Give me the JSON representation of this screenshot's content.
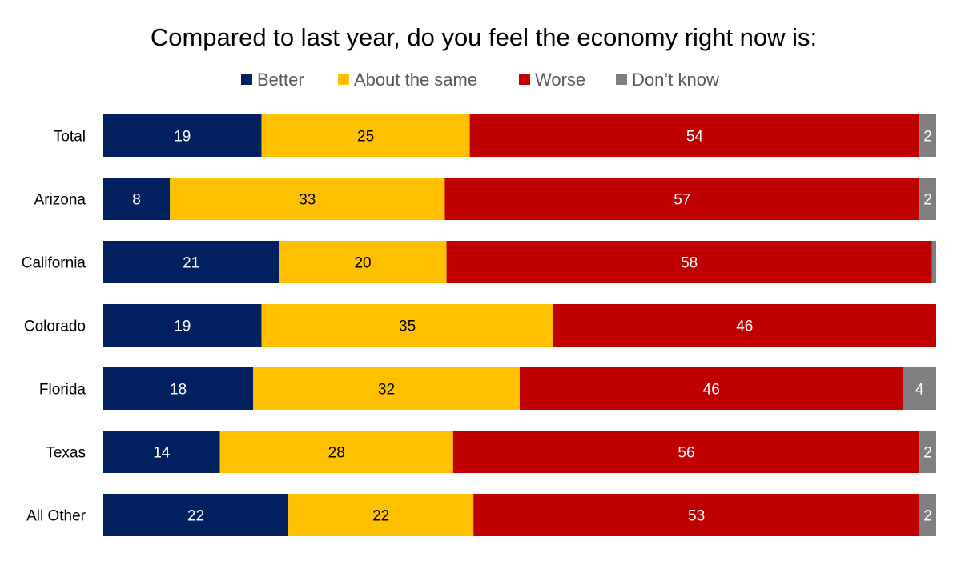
{
  "chart_data": {
    "type": "bar",
    "orientation": "horizontal",
    "stacked": true,
    "title": "Compared to last year, do you feel the economy right now is:",
    "xlabel": "",
    "ylabel": "",
    "xlim": [
      0,
      100
    ],
    "grid": false,
    "legend_position": "top",
    "categories": [
      "Total",
      "Arizona",
      "California",
      "Colorado",
      "Florida",
      "Texas",
      "All Other"
    ],
    "series": [
      {
        "name": "Better",
        "color": "#002060",
        "label_color": "#ffffff",
        "values": [
          19,
          8,
          21,
          19,
          18,
          14,
          22
        ],
        "labels": [
          "19",
          "8",
          "21",
          "19",
          "18",
          "14",
          "22"
        ]
      },
      {
        "name": "About the same",
        "color": "#FFC000",
        "label_color": "#000000",
        "values": [
          25,
          33,
          20,
          35,
          32,
          28,
          22
        ],
        "labels": [
          "25",
          "33",
          "20",
          "35",
          "32",
          "28",
          "22"
        ]
      },
      {
        "name": "Worse",
        "color": "#C00000",
        "label_color": "#ffffff",
        "values": [
          54,
          57,
          58,
          46,
          46,
          56,
          53
        ],
        "labels": [
          "54",
          "57",
          "58",
          "46",
          "46",
          "56",
          "53"
        ]
      },
      {
        "name": "Don’t know",
        "color": "#808080",
        "label_color": "#ffffff",
        "values": [
          2,
          2,
          0.5,
          0,
          4,
          2,
          2
        ],
        "labels": [
          "2",
          "2",
          "",
          "",
          "4",
          "2",
          "2"
        ]
      }
    ]
  }
}
